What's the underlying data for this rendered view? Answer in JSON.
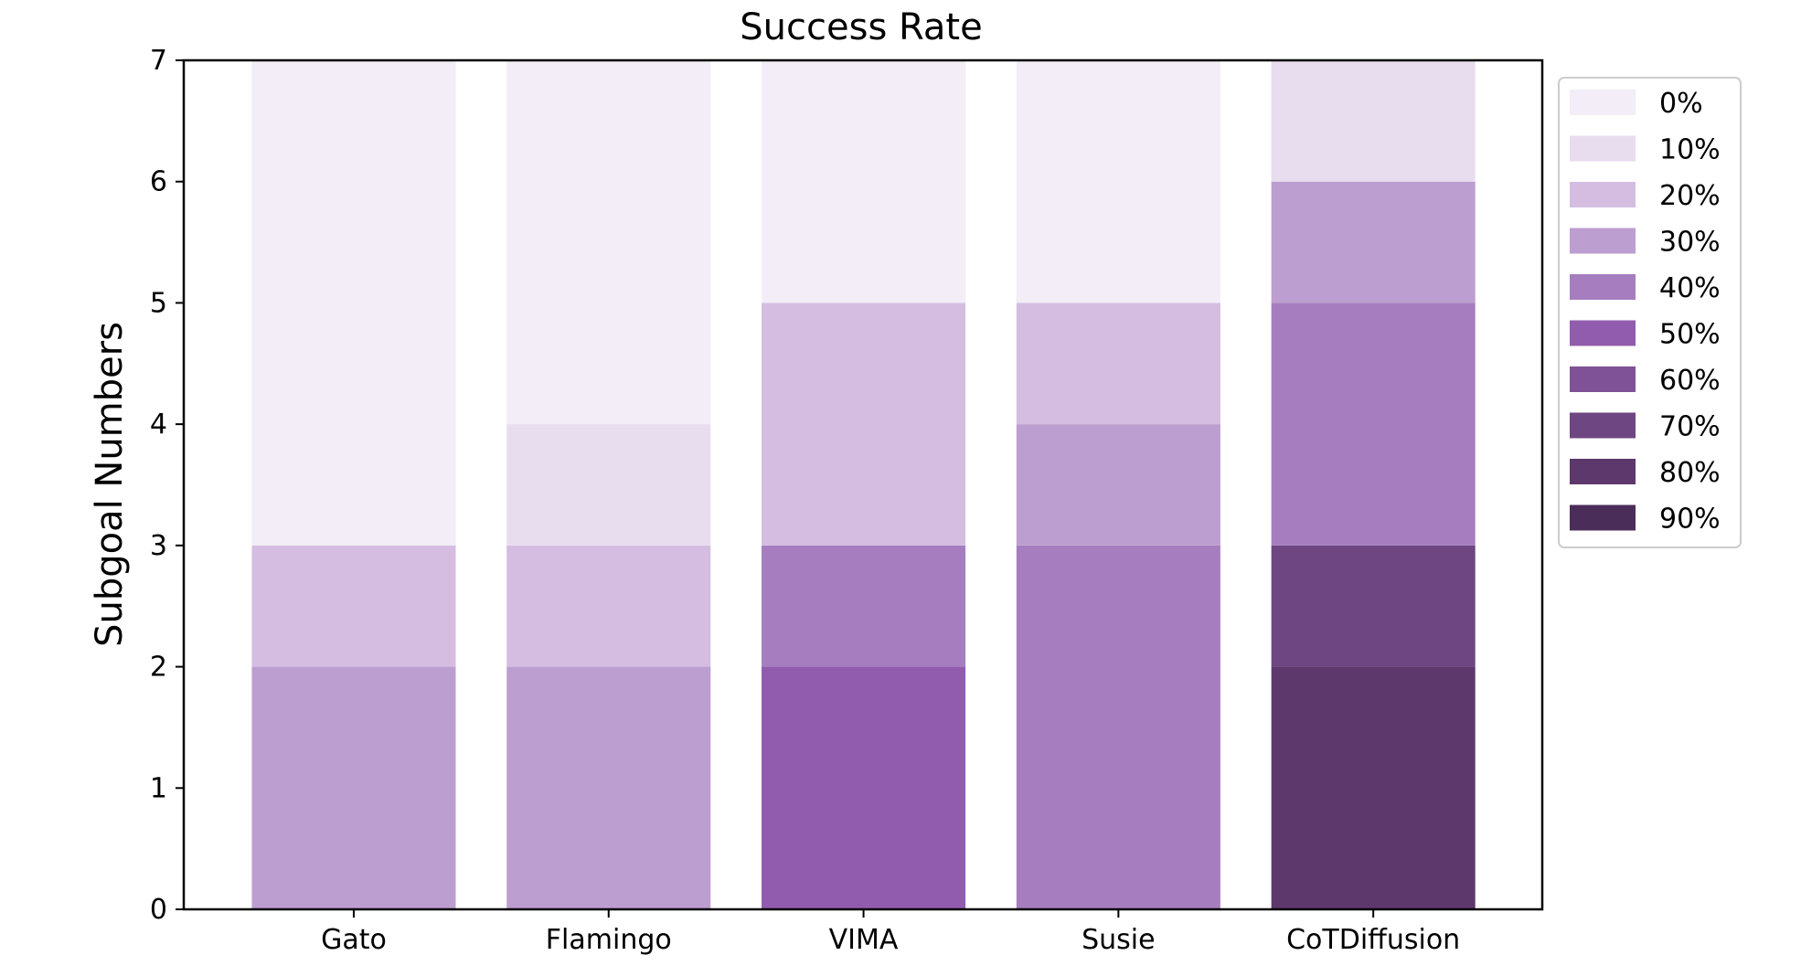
{
  "chart_data": {
    "type": "bar",
    "stacked": true,
    "title": "Success Rate",
    "xlabel": "",
    "ylabel": "Subgoal Numbers",
    "ylim": [
      0,
      7
    ],
    "yticks": [
      "0",
      "1",
      "2",
      "3",
      "4",
      "5",
      "6",
      "7"
    ],
    "categories": [
      "Gato",
      "Flamingo",
      "VIMA",
      "Susie",
      "CoTDiffusion"
    ],
    "legend": {
      "placement": "outside-right-top",
      "entries": [
        {
          "label": "0%",
          "color": "#f2edf6"
        },
        {
          "label": "10%",
          "color": "#e8ddef"
        },
        {
          "label": "20%",
          "color": "#d4bde1"
        },
        {
          "label": "30%",
          "color": "#bd9ed0"
        },
        {
          "label": "40%",
          "color": "#a67ec0"
        },
        {
          "label": "50%",
          "color": "#915cae"
        },
        {
          "label": "60%",
          "color": "#7f5196"
        },
        {
          "label": "70%",
          "color": "#6e4682"
        },
        {
          "label": "80%",
          "color": "#5d386d"
        },
        {
          "label": "90%",
          "color": "#4b2d59"
        }
      ]
    },
    "stacks": [
      {
        "category": "Gato",
        "segments": [
          {
            "from": 0,
            "to": 2,
            "rate": "30%"
          },
          {
            "from": 2,
            "to": 3,
            "rate": "20%"
          },
          {
            "from": 3,
            "to": 7,
            "rate": "0%"
          }
        ]
      },
      {
        "category": "Flamingo",
        "segments": [
          {
            "from": 0,
            "to": 2,
            "rate": "30%"
          },
          {
            "from": 2,
            "to": 3,
            "rate": "20%"
          },
          {
            "from": 3,
            "to": 4,
            "rate": "10%"
          },
          {
            "from": 4,
            "to": 7,
            "rate": "0%"
          }
        ]
      },
      {
        "category": "VIMA",
        "segments": [
          {
            "from": 0,
            "to": 2,
            "rate": "50%"
          },
          {
            "from": 2,
            "to": 3,
            "rate": "40%"
          },
          {
            "from": 3,
            "to": 5,
            "rate": "20%"
          },
          {
            "from": 5,
            "to": 7,
            "rate": "0%"
          }
        ]
      },
      {
        "category": "Susie",
        "segments": [
          {
            "from": 0,
            "to": 3,
            "rate": "40%"
          },
          {
            "from": 3,
            "to": 4,
            "rate": "30%"
          },
          {
            "from": 4,
            "to": 5,
            "rate": "20%"
          },
          {
            "from": 5,
            "to": 7,
            "rate": "0%"
          }
        ]
      },
      {
        "category": "CoTDiffusion",
        "segments": [
          {
            "from": 0,
            "to": 2,
            "rate": "80%"
          },
          {
            "from": 2,
            "to": 3,
            "rate": "70%"
          },
          {
            "from": 3,
            "to": 5,
            "rate": "40%"
          },
          {
            "from": 5,
            "to": 6,
            "rate": "30%"
          },
          {
            "from": 6,
            "to": 7,
            "rate": "10%"
          }
        ]
      }
    ]
  }
}
